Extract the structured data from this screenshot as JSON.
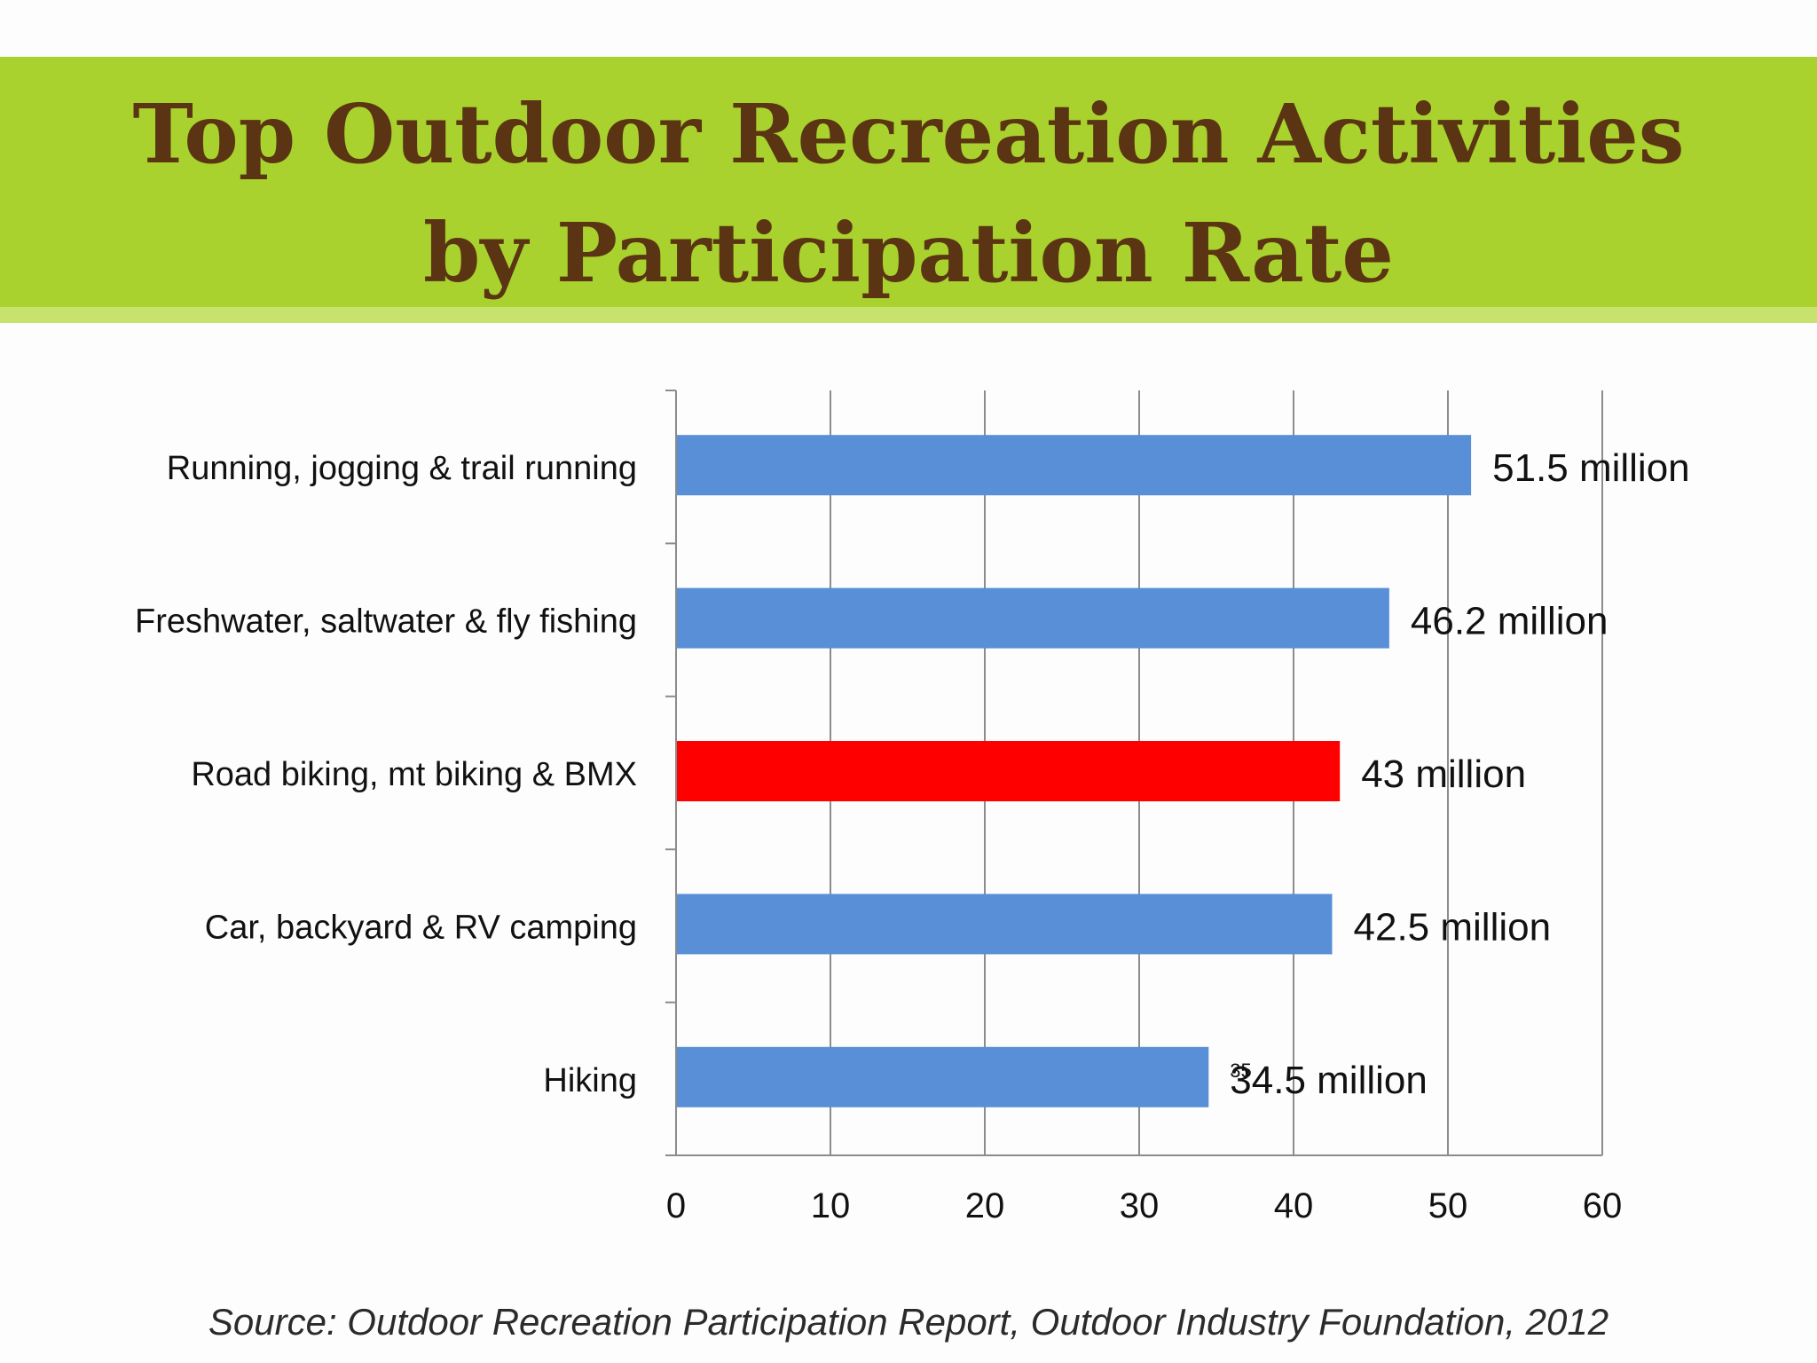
{
  "header": {
    "title_line1": "Top Outdoor Recreation Activities",
    "title_line2": "by Participation Rate",
    "banner_color": "#a9d22e",
    "title_color": "#5a3413"
  },
  "chart_data": {
    "type": "bar",
    "orientation": "horizontal",
    "categories": [
      "Running, jogging & trail running",
      "Freshwater, saltwater & fly fishing",
      "Road biking, mt biking & BMX",
      "Car, backyard & RV camping",
      "Hiking"
    ],
    "values": [
      51.5,
      46.2,
      43,
      42.5,
      34.5
    ],
    "data_labels": [
      "51.5 million",
      "46.2 million",
      "43 million",
      "42.5 million",
      "34.5 million"
    ],
    "overlap_label": "35",
    "colors": [
      "#588fd6",
      "#588fd6",
      "#ff0000",
      "#588fd6",
      "#588fd6"
    ],
    "xlim": [
      0,
      60
    ],
    "xticks": [
      0,
      10,
      20,
      30,
      40,
      50,
      60
    ],
    "grid": true,
    "title": "",
    "xlabel": "",
    "ylabel": ""
  },
  "footer": {
    "source": "Source: Outdoor Recreation Participation Report, Outdoor Industry Foundation, 2012"
  }
}
